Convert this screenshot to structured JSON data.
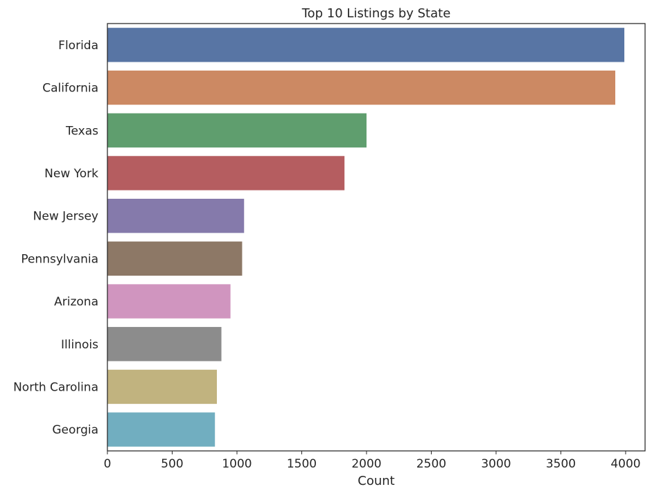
{
  "chart_data": {
    "type": "bar",
    "orientation": "horizontal",
    "title": "Top 10 Listings by State",
    "xlabel": "Count",
    "ylabel": "",
    "xlim": [
      0,
      4150
    ],
    "xticks": [
      0,
      500,
      1000,
      1500,
      2000,
      2500,
      3000,
      3500,
      4000
    ],
    "grid": false,
    "legend": "none",
    "categories": [
      "Florida",
      "California",
      "Texas",
      "New York",
      "New Jersey",
      "Pennsylvania",
      "Arizona",
      "Illinois",
      "North Carolina",
      "Georgia"
    ],
    "values": [
      3990,
      3920,
      2000,
      1830,
      1055,
      1040,
      950,
      880,
      845,
      830
    ],
    "colors": [
      "#5875a4",
      "#cc8963",
      "#5f9e6e",
      "#b55d60",
      "#857aab",
      "#8d7866",
      "#d095bf",
      "#8c8c8c",
      "#c1b37f",
      "#71aec0"
    ]
  }
}
